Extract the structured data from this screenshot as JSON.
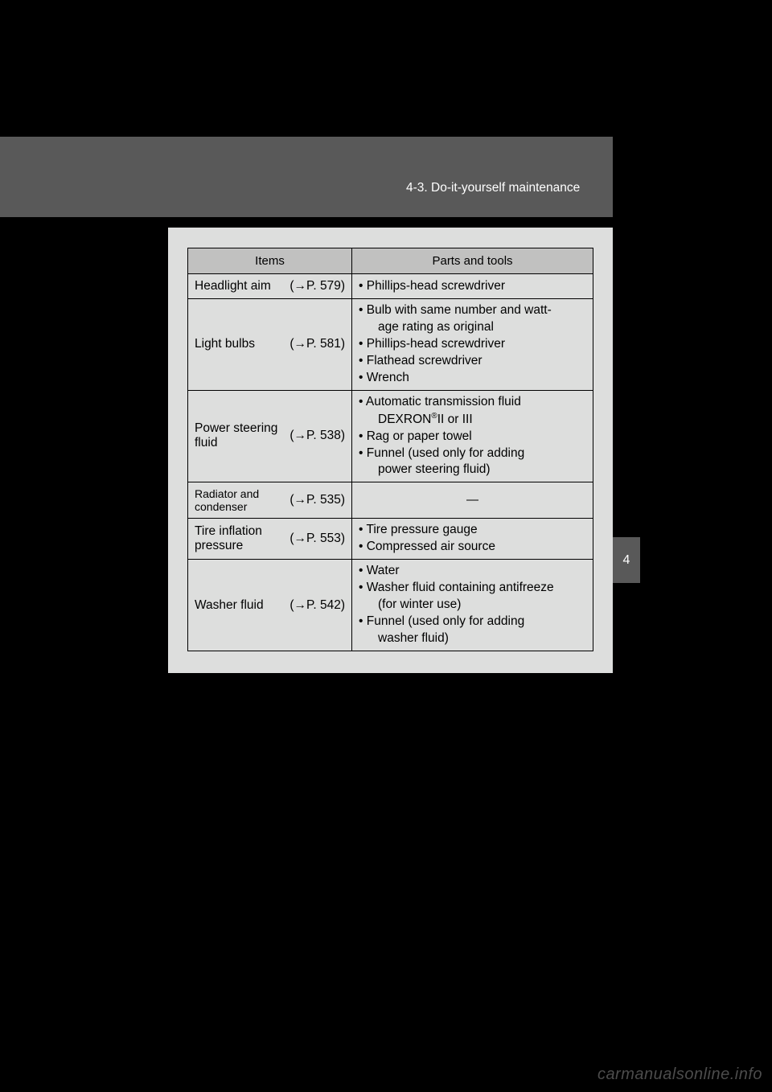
{
  "header": {
    "section_title": "4-3. Do-it-yourself maintenance"
  },
  "side_tab": {
    "label": "4"
  },
  "table": {
    "columns": [
      "Items",
      "Parts and tools"
    ],
    "rows": [
      {
        "item": "Headlight aim",
        "page": "579",
        "size": "normal",
        "tools_type": "list",
        "tools": [
          "Phillips-head screwdriver"
        ]
      },
      {
        "item": "Light bulbs",
        "page": "581",
        "size": "normal",
        "tools_type": "list",
        "tools": [
          "Bulb with same number and watt-<br><span class=\"indent\">age rating as original</span>",
          "Phillips-head screwdriver",
          "Flathead screwdriver",
          "Wrench"
        ]
      },
      {
        "item": "Power steering fluid",
        "page": "538",
        "size": "normal",
        "tools_type": "list",
        "tools": [
          "Automatic transmission fluid<br><span class=\"indent\">DEXRON<sup>®</sup>II or III</span>",
          "Rag or paper towel",
          "Funnel (used only for adding<br><span class=\"indent\">power steering fluid)</span>"
        ]
      },
      {
        "item": "Radiator and condenser",
        "page": "535",
        "size": "small",
        "tools_type": "dash",
        "tools": []
      },
      {
        "item": "Tire inflation pressure",
        "page": "553",
        "size": "normal",
        "tools_type": "list",
        "tools": [
          "Tire pressure gauge",
          "Compressed air source"
        ]
      },
      {
        "item": "Washer fluid",
        "page": "542",
        "size": "normal",
        "tools_type": "list",
        "tools": [
          "Water",
          "Washer fluid containing antifreeze<br><span class=\"indent\">(for winter use)</span>",
          "Funnel (used only for adding<br><span class=\"indent\">washer fluid)</span>"
        ]
      }
    ]
  },
  "watermark": "carmanualsonline.info"
}
